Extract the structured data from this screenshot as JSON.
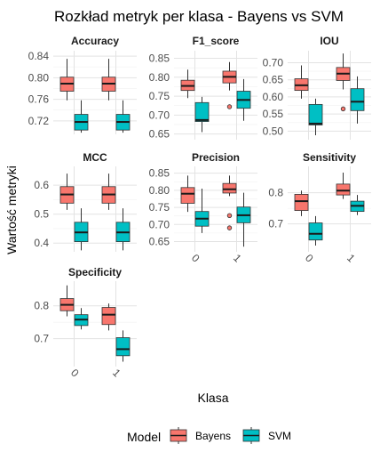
{
  "chart_data": {
    "type": "boxplot",
    "title": "Rozkład metryk per klasa - Bayens vs SVM",
    "xlabel": "Klasa",
    "ylabel": "Wartość metryki",
    "categories": [
      "0",
      "1"
    ],
    "legend": {
      "title": "Model",
      "position": "bottom",
      "items": [
        {
          "name": "Bayens",
          "color": "#F8766D"
        },
        {
          "name": "SVM",
          "color": "#00BFC4"
        }
      ]
    },
    "grid": true,
    "facets": [
      {
        "name": "Accuracy",
        "ylim": [
          0.695,
          0.85
        ],
        "yticks": [
          "0.84",
          "0.80",
          "0.76",
          "0.72"
        ],
        "ytick_values": [
          0.84,
          0.8,
          0.76,
          0.72
        ],
        "boxes": [
          {
            "class": "0",
            "model": "Bayens",
            "min": 0.758,
            "q1": 0.775,
            "median": 0.789,
            "q3": 0.801,
            "max": 0.835,
            "outliers": []
          },
          {
            "class": "0",
            "model": "SVM",
            "min": 0.698,
            "q1": 0.703,
            "median": 0.718,
            "q3": 0.732,
            "max": 0.758,
            "outliers": []
          },
          {
            "class": "1",
            "model": "Bayens",
            "min": 0.758,
            "q1": 0.775,
            "median": 0.789,
            "q3": 0.801,
            "max": 0.835,
            "outliers": []
          },
          {
            "class": "1",
            "model": "SVM",
            "min": 0.698,
            "q1": 0.703,
            "median": 0.718,
            "q3": 0.732,
            "max": 0.758,
            "outliers": []
          }
        ]
      },
      {
        "name": "F1_score",
        "ylim": [
          0.635,
          0.87
        ],
        "yticks": [
          "0.85",
          "0.80",
          "0.75",
          "0.70",
          "0.65"
        ],
        "ytick_values": [
          0.85,
          0.8,
          0.75,
          0.7,
          0.65
        ],
        "boxes": [
          {
            "class": "0",
            "model": "Bayens",
            "min": 0.745,
            "q1": 0.765,
            "median": 0.777,
            "q3": 0.792,
            "max": 0.82,
            "outliers": []
          },
          {
            "class": "0",
            "model": "SVM",
            "min": 0.655,
            "q1": 0.683,
            "median": 0.687,
            "q3": 0.733,
            "max": 0.748,
            "outliers": []
          },
          {
            "class": "1",
            "model": "Bayens",
            "min": 0.765,
            "q1": 0.785,
            "median": 0.801,
            "q3": 0.816,
            "max": 0.84,
            "outliers": [
              0.722
            ]
          },
          {
            "class": "1",
            "model": "SVM",
            "min": 0.685,
            "q1": 0.718,
            "median": 0.74,
            "q3": 0.763,
            "max": 0.795,
            "outliers": []
          }
        ]
      },
      {
        "name": "IOU",
        "ylim": [
          0.475,
          0.735
        ],
        "yticks": [
          "0.70",
          "0.65",
          "0.60",
          "0.55",
          "0.50"
        ],
        "ytick_values": [
          0.7,
          0.65,
          0.6,
          0.55,
          0.5
        ],
        "boxes": [
          {
            "class": "0",
            "model": "Bayens",
            "min": 0.595,
            "q1": 0.619,
            "median": 0.634,
            "q3": 0.653,
            "max": 0.692,
            "outliers": []
          },
          {
            "class": "0",
            "model": "SVM",
            "min": 0.488,
            "q1": 0.518,
            "median": 0.522,
            "q3": 0.578,
            "max": 0.595,
            "outliers": []
          },
          {
            "class": "1",
            "model": "Bayens",
            "min": 0.622,
            "q1": 0.648,
            "median": 0.668,
            "q3": 0.686,
            "max": 0.727,
            "outliers": [
              0.565
            ]
          },
          {
            "class": "1",
            "model": "SVM",
            "min": 0.522,
            "q1": 0.56,
            "median": 0.586,
            "q3": 0.624,
            "max": 0.66,
            "outliers": []
          }
        ]
      },
      {
        "name": "MCC",
        "ylim": [
          0.37,
          0.665
        ],
        "yticks": [
          "0.6",
          "0.5",
          "0.4"
        ],
        "ytick_values": [
          0.6,
          0.5,
          0.4
        ],
        "boxes": [
          {
            "class": "0",
            "model": "Bayens",
            "min": 0.515,
            "q1": 0.538,
            "median": 0.568,
            "q3": 0.595,
            "max": 0.64,
            "outliers": []
          },
          {
            "class": "0",
            "model": "SVM",
            "min": 0.375,
            "q1": 0.405,
            "median": 0.437,
            "q3": 0.472,
            "max": 0.52,
            "outliers": []
          },
          {
            "class": "1",
            "model": "Bayens",
            "min": 0.515,
            "q1": 0.538,
            "median": 0.568,
            "q3": 0.595,
            "max": 0.64,
            "outliers": []
          },
          {
            "class": "1",
            "model": "SVM",
            "min": 0.375,
            "q1": 0.405,
            "median": 0.437,
            "q3": 0.472,
            "max": 0.52,
            "outliers": []
          }
        ]
      },
      {
        "name": "Precision",
        "ylim": [
          0.62,
          0.87
        ],
        "yticks": [
          "0.85",
          "0.80",
          "0.75",
          "0.70",
          "0.65"
        ],
        "ytick_values": [
          0.85,
          0.8,
          0.75,
          0.7,
          0.65
        ],
        "boxes": [
          {
            "class": "0",
            "model": "Bayens",
            "min": 0.737,
            "q1": 0.762,
            "median": 0.79,
            "q3": 0.808,
            "max": 0.843,
            "outliers": []
          },
          {
            "class": "0",
            "model": "SVM",
            "min": 0.675,
            "q1": 0.695,
            "median": 0.717,
            "q3": 0.738,
            "max": 0.805,
            "outliers": []
          },
          {
            "class": "1",
            "model": "Bayens",
            "min": 0.783,
            "q1": 0.792,
            "median": 0.803,
            "q3": 0.82,
            "max": 0.843,
            "outliers": [
              0.726,
              0.69
            ]
          },
          {
            "class": "1",
            "model": "SVM",
            "min": 0.635,
            "q1": 0.705,
            "median": 0.727,
            "q3": 0.751,
            "max": 0.793,
            "outliers": []
          }
        ]
      },
      {
        "name": "Sensitivity",
        "ylim": [
          0.61,
          0.885
        ],
        "yticks": [
          "0.8",
          "0.7"
        ],
        "ytick_values": [
          0.8,
          0.7
        ],
        "boxes": [
          {
            "class": "0",
            "model": "Bayens",
            "min": 0.725,
            "q1": 0.743,
            "median": 0.773,
            "q3": 0.795,
            "max": 0.807,
            "outliers": []
          },
          {
            "class": "0",
            "model": "SVM",
            "min": 0.63,
            "q1": 0.648,
            "median": 0.668,
            "q3": 0.703,
            "max": 0.725,
            "outliers": []
          },
          {
            "class": "1",
            "model": "Bayens",
            "min": 0.78,
            "q1": 0.793,
            "median": 0.807,
            "q3": 0.828,
            "max": 0.865,
            "outliers": []
          },
          {
            "class": "1",
            "model": "SVM",
            "min": 0.728,
            "q1": 0.74,
            "median": 0.758,
            "q3": 0.773,
            "max": 0.793,
            "outliers": []
          }
        ]
      },
      {
        "name": "Specificity",
        "ylim": [
          0.615,
          0.875
        ],
        "yticks": [
          "0.8",
          "0.7"
        ],
        "ytick_values": [
          0.8,
          0.7
        ],
        "boxes": [
          {
            "class": "0",
            "model": "Bayens",
            "min": 0.768,
            "q1": 0.785,
            "median": 0.803,
            "q3": 0.822,
            "max": 0.862,
            "outliers": []
          },
          {
            "class": "0",
            "model": "SVM",
            "min": 0.728,
            "q1": 0.74,
            "median": 0.758,
            "q3": 0.773,
            "max": 0.793,
            "outliers": []
          },
          {
            "class": "1",
            "model": "Bayens",
            "min": 0.725,
            "q1": 0.743,
            "median": 0.773,
            "q3": 0.795,
            "max": 0.807,
            "outliers": []
          },
          {
            "class": "1",
            "model": "SVM",
            "min": 0.63,
            "q1": 0.648,
            "median": 0.668,
            "q3": 0.703,
            "max": 0.725,
            "outliers": []
          }
        ]
      }
    ]
  }
}
